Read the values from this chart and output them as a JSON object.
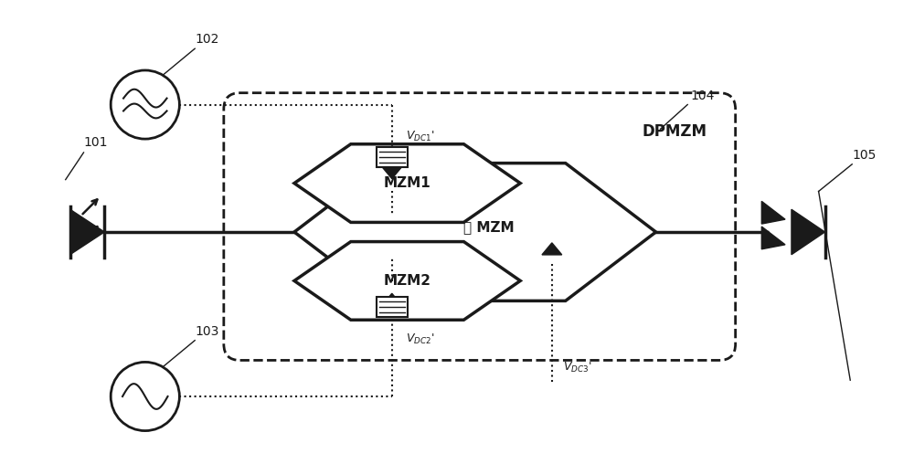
{
  "fig_width": 10.0,
  "fig_height": 5.08,
  "dpi": 100,
  "bg_color": "#ffffff",
  "line_color": "#1a1a1a",
  "label_101": "101",
  "label_102": "102",
  "label_103": "103",
  "label_104": "104",
  "label_105": "105",
  "label_dpmzm": "DPMZM",
  "label_mzm1": "MZM1",
  "label_mzm2": "MZM2",
  "label_main_mzm": "主 MZM"
}
